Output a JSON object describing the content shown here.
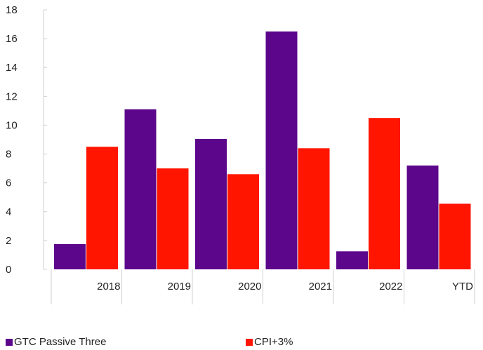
{
  "chart_data": {
    "type": "bar",
    "categories": [
      "2018",
      "2019",
      "2020",
      "2021",
      "2022",
      "YTD"
    ],
    "series": [
      {
        "name": "GTC Passive Three",
        "color": "#5c068c",
        "values": [
          1.75,
          11.1,
          9.05,
          16.5,
          1.25,
          7.2
        ]
      },
      {
        "name": "CPI+3%",
        "color": "#ff1500",
        "values": [
          8.5,
          7.0,
          6.6,
          8.4,
          10.5,
          4.55
        ]
      }
    ],
    "y_ticks": [
      "0",
      "2",
      "4",
      "6",
      "8",
      "10",
      "12",
      "14",
      "16",
      "18"
    ],
    "ylim": [
      0,
      18
    ],
    "grid": false,
    "legend_position": "bottom"
  }
}
